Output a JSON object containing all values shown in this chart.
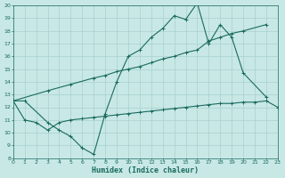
{
  "bg_color": "#c8e8e5",
  "grid_color": "#a8d0cd",
  "line_color": "#1a6b5e",
  "xlabel": "Humidex (Indice chaleur)",
  "xlim": [
    0,
    23
  ],
  "ylim": [
    8,
    20
  ],
  "xticks": [
    0,
    1,
    2,
    3,
    4,
    5,
    6,
    7,
    8,
    9,
    10,
    11,
    12,
    13,
    14,
    15,
    16,
    17,
    18,
    19,
    20,
    21,
    22,
    23
  ],
  "yticks": [
    8,
    9,
    10,
    11,
    12,
    13,
    14,
    15,
    16,
    17,
    18,
    19,
    20
  ],
  "line1_x": [
    0,
    1,
    3,
    4,
    5,
    6,
    7,
    8,
    9,
    10,
    11,
    12,
    13,
    14,
    15,
    16,
    17,
    18,
    19,
    20,
    22
  ],
  "line1_y": [
    12.5,
    12.5,
    10.8,
    10.2,
    9.7,
    8.8,
    8.3,
    11.5,
    14.0,
    16.0,
    16.5,
    17.5,
    18.2,
    19.2,
    18.9,
    20.2,
    17.0,
    18.5,
    17.5,
    14.7,
    12.8
  ],
  "line2_x": [
    0,
    3,
    5,
    7,
    8,
    9,
    10,
    11,
    12,
    13,
    14,
    15,
    16,
    17,
    18,
    19,
    20,
    22
  ],
  "line2_y": [
    12.5,
    13.3,
    13.8,
    14.3,
    14.5,
    14.8,
    15.0,
    15.2,
    15.5,
    15.8,
    16.0,
    16.3,
    16.5,
    17.2,
    17.5,
    17.8,
    18.0,
    18.5
  ],
  "line3_x": [
    0,
    1,
    2,
    3,
    4,
    5,
    6,
    7,
    8,
    9,
    10,
    11,
    12,
    13,
    14,
    15,
    16,
    17,
    18,
    19,
    20,
    21,
    22,
    23
  ],
  "line3_y": [
    12.5,
    11.0,
    10.8,
    10.2,
    10.8,
    11.0,
    11.1,
    11.2,
    11.3,
    11.4,
    11.5,
    11.6,
    11.7,
    11.8,
    11.9,
    12.0,
    12.1,
    12.2,
    12.3,
    12.3,
    12.4,
    12.4,
    12.5,
    12.0
  ]
}
